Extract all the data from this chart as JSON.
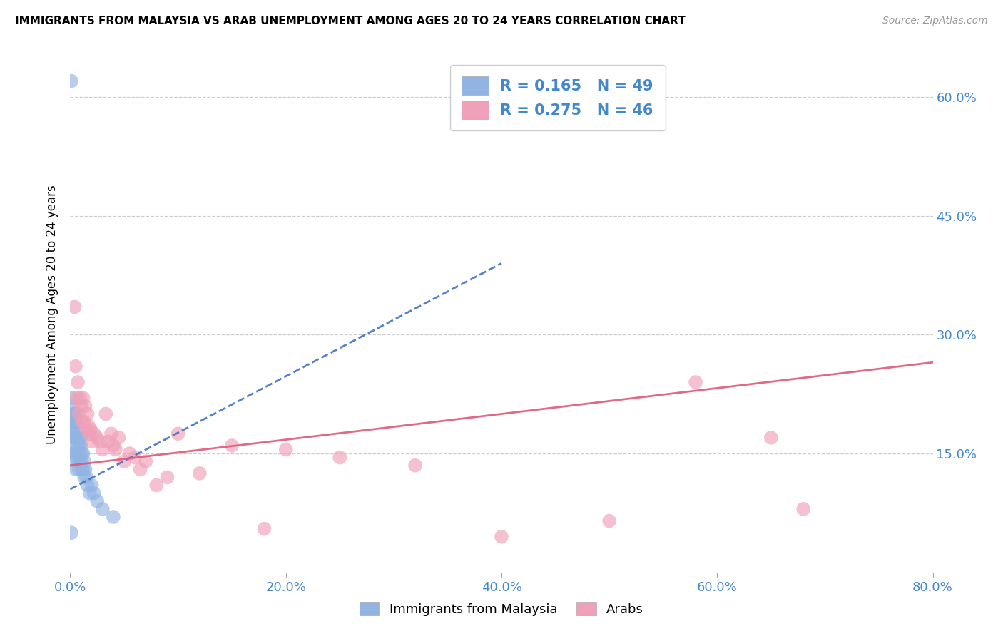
{
  "title": "IMMIGRANTS FROM MALAYSIA VS ARAB UNEMPLOYMENT AMONG AGES 20 TO 24 YEARS CORRELATION CHART",
  "source": "Source: ZipAtlas.com",
  "ylabel": "Unemployment Among Ages 20 to 24 years",
  "legend_label1": "Immigrants from Malaysia",
  "legend_label2": "Arabs",
  "R1": 0.165,
  "N1": 49,
  "R2": 0.275,
  "N2": 46,
  "color1": "#92b4e3",
  "color2": "#f0a0b8",
  "trendline1_color": "#4472c4",
  "trendline2_color": "#e05878",
  "axis_label_color": "#4488cc",
  "background_color": "#ffffff",
  "xlim": [
    0.0,
    0.8
  ],
  "ylim": [
    0.0,
    0.65
  ],
  "xticks": [
    0.0,
    0.2,
    0.4,
    0.6,
    0.8
  ],
  "yticks_right": [
    0.15,
    0.3,
    0.45,
    0.6
  ],
  "blue_points_x": [
    0.001,
    0.0015,
    0.002,
    0.002,
    0.0025,
    0.003,
    0.003,
    0.003,
    0.003,
    0.004,
    0.004,
    0.004,
    0.004,
    0.004,
    0.005,
    0.005,
    0.005,
    0.005,
    0.005,
    0.006,
    0.006,
    0.006,
    0.007,
    0.007,
    0.007,
    0.008,
    0.008,
    0.008,
    0.009,
    0.009,
    0.01,
    0.01,
    0.01,
    0.011,
    0.011,
    0.012,
    0.012,
    0.013,
    0.013,
    0.014,
    0.015,
    0.016,
    0.018,
    0.02,
    0.022,
    0.025,
    0.03,
    0.04,
    0.001
  ],
  "blue_points_y": [
    0.62,
    0.22,
    0.21,
    0.19,
    0.18,
    0.2,
    0.19,
    0.17,
    0.15,
    0.2,
    0.18,
    0.17,
    0.16,
    0.14,
    0.2,
    0.19,
    0.17,
    0.15,
    0.13,
    0.19,
    0.17,
    0.15,
    0.18,
    0.16,
    0.14,
    0.17,
    0.15,
    0.13,
    0.16,
    0.14,
    0.17,
    0.16,
    0.14,
    0.15,
    0.13,
    0.15,
    0.13,
    0.14,
    0.12,
    0.13,
    0.12,
    0.11,
    0.1,
    0.11,
    0.1,
    0.09,
    0.08,
    0.07,
    0.05
  ],
  "pink_points_x": [
    0.004,
    0.005,
    0.006,
    0.007,
    0.008,
    0.009,
    0.01,
    0.011,
    0.012,
    0.013,
    0.014,
    0.015,
    0.016,
    0.017,
    0.018,
    0.019,
    0.02,
    0.022,
    0.025,
    0.028,
    0.03,
    0.033,
    0.035,
    0.038,
    0.04,
    0.042,
    0.045,
    0.05,
    0.055,
    0.06,
    0.065,
    0.07,
    0.08,
    0.09,
    0.1,
    0.12,
    0.15,
    0.18,
    0.2,
    0.25,
    0.32,
    0.4,
    0.5,
    0.58,
    0.65,
    0.68
  ],
  "pink_points_y": [
    0.335,
    0.26,
    0.22,
    0.24,
    0.2,
    0.22,
    0.21,
    0.19,
    0.22,
    0.19,
    0.21,
    0.18,
    0.2,
    0.185,
    0.175,
    0.18,
    0.165,
    0.175,
    0.17,
    0.165,
    0.155,
    0.2,
    0.165,
    0.175,
    0.16,
    0.155,
    0.17,
    0.14,
    0.15,
    0.145,
    0.13,
    0.14,
    0.11,
    0.12,
    0.175,
    0.125,
    0.16,
    0.055,
    0.155,
    0.145,
    0.135,
    0.045,
    0.065,
    0.24,
    0.17,
    0.08
  ],
  "trendline1_x": [
    0.0,
    0.4
  ],
  "trendline1_y": [
    0.105,
    0.39
  ],
  "trendline2_x": [
    0.0,
    0.8
  ],
  "trendline2_y": [
    0.135,
    0.265
  ]
}
